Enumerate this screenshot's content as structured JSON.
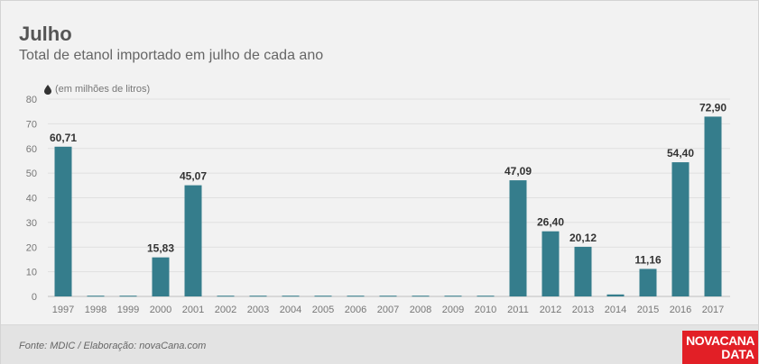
{
  "header": {
    "title": "Julho",
    "subtitle": "Total de etanol importado em julho de cada ano",
    "unit_label": "(em milhões de litros)",
    "unit_icon": "drop-icon"
  },
  "footer": {
    "source": "Fonte: MDIC / Elaboração: novaCana.com",
    "logo_line1": "NOVACANA",
    "logo_line2": "DATA",
    "logo_color": "#e21f26"
  },
  "chart_data": {
    "type": "bar",
    "categories": [
      "1997",
      "1998",
      "1999",
      "2000",
      "2001",
      "2002",
      "2003",
      "2004",
      "2005",
      "2006",
      "2007",
      "2008",
      "2009",
      "2010",
      "2011",
      "2012",
      "2013",
      "2014",
      "2015",
      "2016",
      "2017"
    ],
    "values": [
      60.71,
      0.3,
      0.3,
      15.83,
      45.07,
      0.3,
      0.3,
      0.3,
      0.3,
      0.3,
      0.3,
      0.3,
      0.3,
      0.3,
      47.09,
      26.4,
      20.12,
      0.8,
      11.16,
      54.4,
      72.9
    ],
    "data_labels": [
      "60,71",
      "",
      "",
      "15,83",
      "45,07",
      "",
      "",
      "",
      "",
      "",
      "",
      "",
      "",
      "",
      "47,09",
      "26,40",
      "20,12",
      "",
      "11,16",
      "54,40",
      "72,90"
    ],
    "yticks": [
      "0",
      "10",
      "20",
      "30",
      "40",
      "50",
      "60",
      "70",
      "80"
    ],
    "ylim": [
      0,
      80
    ],
    "grid": true,
    "bar_color": "#357d8c"
  }
}
